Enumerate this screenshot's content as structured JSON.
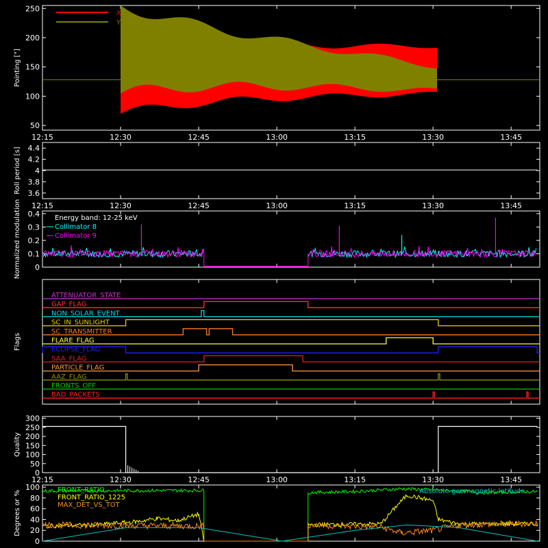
{
  "time_ticks": [
    "12:15",
    "12:30",
    "12:45",
    "13:00",
    "13:15",
    "13:30",
    "13:45"
  ],
  "colors": {
    "background": "#000000",
    "axes": "#ffffff",
    "x": "#ff0000",
    "y": "#808000",
    "collimator8": "#00ffff",
    "collimator9": "#ff00ff",
    "front_ratio": "#00ff00",
    "front_ratio_1225": "#ffff00",
    "max_det": "#ff8c1a",
    "lat": "#00c8c8"
  },
  "chart_data": [
    {
      "type": "line",
      "ylabel": "Pointing [\"]",
      "yticks": [
        50,
        100,
        150,
        200,
        250
      ],
      "ylim": [
        42,
        255
      ],
      "legend": [
        "X",
        "Y"
      ],
      "pointing_baseline": 128,
      "x_band_start": "12:30",
      "x_band_end": "13:31",
      "x_range_start": [
        95,
        185
      ],
      "x_range_end": [
        105,
        185
      ],
      "y_range_start": [
        130,
        235
      ],
      "y_range_end": [
        110,
        150
      ]
    },
    {
      "type": "line",
      "ylabel": "Roll period [s]",
      "yticks": [
        3.6,
        3.8,
        4.0,
        4.2,
        4.4
      ],
      "ylim": [
        3.5,
        4.5
      ],
      "x": [
        "12:15",
        "13:50"
      ],
      "values": [
        4.01,
        4.01
      ]
    },
    {
      "type": "line",
      "ylabel": "Normalized modulation",
      "yticks": [
        0.0,
        0.1,
        0.2,
        0.3,
        0.4
      ],
      "ylim": [
        0,
        0.42
      ],
      "annotation": "Energy band: 12-25 keV",
      "series": [
        {
          "name": "Collimator 8",
          "segments": [
            [
              "12:15",
              "12:46"
            ],
            [
              "13:06",
              "13:50"
            ]
          ],
          "level": 0.1
        },
        {
          "name": "Collimator 9",
          "segments": [
            [
              "12:15",
              "12:46"
            ],
            [
              "13:06",
              "13:50"
            ]
          ],
          "level": 0.1
        }
      ],
      "gap": [
        "12:46",
        "13:06"
      ],
      "gap_value": 0.0,
      "spikes": [
        {
          "t": "12:34",
          "value": 0.32,
          "series": "Collimator 9"
        },
        {
          "t": "13:12",
          "value": 0.31,
          "series": "Collimator 9"
        },
        {
          "t": "13:24",
          "value": 0.24,
          "series": "Collimator 8"
        },
        {
          "t": "13:42",
          "value": 0.37,
          "series": "Collimator 9"
        }
      ]
    },
    {
      "type": "flags",
      "ylabel": "Flags",
      "flags": [
        {
          "name": "ATTENUATOR_STATE",
          "color": "#cc33cc",
          "on": []
        },
        {
          "name": "GAP_FLAG",
          "color": "#ff3030",
          "on": [
            [
              "12:46",
              "13:06"
            ]
          ]
        },
        {
          "name": "NON_SOLAR_EVENT",
          "color": "#00e0e0",
          "on": [
            [
              "12:45.5",
              "12:46"
            ]
          ]
        },
        {
          "name": "SC_IN_SUNLIGHT",
          "color": "#e8d000",
          "on": [
            [
              "12:31",
              "13:31"
            ]
          ]
        },
        {
          "name": "SC_TRANSMITTER",
          "color": "#ff7a20",
          "on": [
            [
              "12:42",
              "12:46.5"
            ],
            [
              "12:47",
              "12:51.5"
            ]
          ]
        },
        {
          "name": "FLARE_FLAG",
          "color": "#ffff40",
          "on": [
            [
              "13:21",
              "13:30"
            ]
          ]
        },
        {
          "name": "ECLIPSE_FLAG",
          "color": "#2020ff",
          "on": [
            [
              "12:15",
              "12:31"
            ],
            [
              "13:31",
              "13:50"
            ]
          ]
        },
        {
          "name": "SAA_FLAG",
          "color": "#e02020",
          "on": [
            [
              "12:46",
              "13:05"
            ]
          ]
        },
        {
          "name": "PARTICLE_FLAG",
          "color": "#ff9a40",
          "on": [
            [
              "12:45",
              "13:03"
            ]
          ]
        },
        {
          "name": "AAZ_FLAG",
          "color": "#909000",
          "on": [
            [
              "12:31",
              "12:31.3"
            ],
            [
              "13:31",
              "13:31.3"
            ]
          ]
        },
        {
          "name": "FRONTS_OFF",
          "color": "#00d000",
          "on": []
        },
        {
          "name": "BAD_PACKETS",
          "color": "#ff2020",
          "on": [
            [
              "13:30",
              "13:30.2"
            ],
            [
              "13:48",
              "13:48.2"
            ]
          ]
        }
      ]
    },
    {
      "type": "line",
      "ylabel": "Quality",
      "yticks": [
        0,
        50,
        100,
        150,
        200,
        250,
        300
      ],
      "ylim": [
        0,
        310
      ],
      "steps": [
        {
          "t": "12:15",
          "value": 255
        },
        {
          "t": "12:31",
          "value": 0
        },
        {
          "t": "13:31",
          "value": 255
        },
        {
          "t": "13:50",
          "value": 255
        }
      ]
    },
    {
      "type": "line",
      "ylabel": "Degrees or %",
      "yticks": [
        0,
        20,
        40,
        60,
        80,
        100
      ],
      "ylim": [
        0,
        104
      ],
      "legend": [
        "FRONT_RATIO",
        "FRONT_RATIO_1225",
        "MAX_DET_VS_TOT"
      ],
      "annotation": "Absolute geomagnetic latitude",
      "series": [
        {
          "name": "FRONT_RATIO",
          "points": [
            [
              "12:15",
              93
            ],
            [
              "12:46",
              94
            ],
            [
              "12:46",
              0
            ],
            [
              "13:06",
              0
            ],
            [
              "13:06",
              90
            ],
            [
              "13:15",
              92
            ],
            [
              "13:24",
              97
            ],
            [
              "13:30",
              95
            ],
            [
              "13:40",
              90
            ],
            [
              "13:50",
              92
            ]
          ]
        },
        {
          "name": "FRONT_RATIO_1225",
          "points": [
            [
              "12:15",
              28
            ],
            [
              "12:25",
              30
            ],
            [
              "12:33",
              36
            ],
            [
              "12:37",
              42
            ],
            [
              "12:41",
              38
            ],
            [
              "12:45",
              50
            ],
            [
              "12:46",
              0
            ],
            [
              "13:06",
              0
            ],
            [
              "13:06",
              30
            ],
            [
              "13:20",
              32
            ],
            [
              "13:23",
              65
            ],
            [
              "13:25",
              85
            ],
            [
              "13:30",
              75
            ],
            [
              "13:31",
              40
            ],
            [
              "13:35",
              32
            ],
            [
              "13:50",
              32
            ]
          ]
        },
        {
          "name": "MAX_DET_VS_TOT",
          "points": [
            [
              "12:15",
              30
            ],
            [
              "12:46",
              28
            ],
            [
              "12:46",
              0
            ],
            [
              "13:06",
              0
            ],
            [
              "13:06",
              30
            ],
            [
              "13:20",
              26
            ],
            [
              "13:24",
              15
            ],
            [
              "13:30",
              20
            ],
            [
              "13:35",
              30
            ],
            [
              "13:50",
              33
            ]
          ]
        },
        {
          "name": "Absolute geomagnetic latitude",
          "points": [
            [
              "12:15",
              0
            ],
            [
              "12:31",
              25
            ],
            [
              "12:45",
              25
            ],
            [
              "13:01",
              0
            ],
            [
              "13:15",
              20
            ],
            [
              "13:25",
              30
            ],
            [
              "13:35",
              25
            ],
            [
              "13:50",
              0
            ]
          ]
        }
      ]
    }
  ]
}
